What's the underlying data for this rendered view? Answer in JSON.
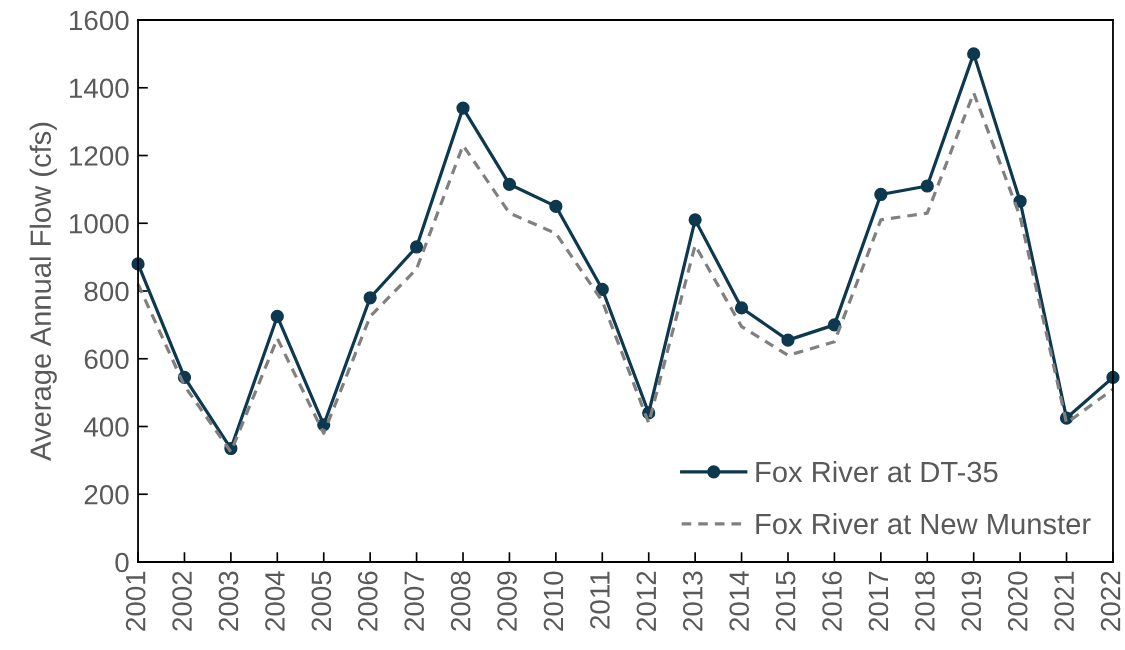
{
  "chart_data": {
    "type": "line",
    "ylabel": "Average Annual Flow (cfs)",
    "categories": [
      "2001",
      "2002",
      "2003",
      "2004",
      "2005",
      "2006",
      "2007",
      "2008",
      "2009",
      "2010",
      "2011",
      "2012",
      "2013",
      "2014",
      "2015",
      "2016",
      "2017",
      "2018",
      "2019",
      "2020",
      "2021",
      "2022"
    ],
    "series": [
      {
        "name": "Fox River at DT-35",
        "color": "#0d384d",
        "marker": "circle",
        "line_style": "solid",
        "values": [
          880,
          545,
          335,
          725,
          405,
          780,
          930,
          1340,
          1115,
          1050,
          805,
          440,
          1010,
          750,
          655,
          700,
          1085,
          1110,
          1500,
          1065,
          425,
          545
        ]
      },
      {
        "name": "Fox River at New Munster",
        "color": "#808080",
        "marker": "none",
        "line_style": "dashed",
        "values": [
          820,
          520,
          325,
          660,
          380,
          725,
          865,
          1230,
          1030,
          970,
          770,
          410,
          935,
          695,
          610,
          650,
          1010,
          1030,
          1385,
          1020,
          410,
          510
        ]
      }
    ],
    "ylim": [
      0,
      1600
    ],
    "yticks": [
      0,
      200,
      400,
      600,
      800,
      1000,
      1200,
      1400,
      1600
    ],
    "legend": "bottom right"
  }
}
